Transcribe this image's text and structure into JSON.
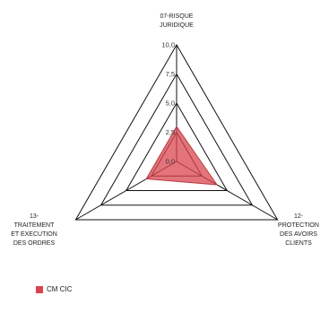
{
  "chart_data": {
    "type": "radar",
    "categories": [
      [
        "07-RISQUE",
        "JURIDIQUE"
      ],
      [
        "12-",
        "PROTECTION",
        "DES AVOIRS",
        "CLIENTS"
      ],
      [
        "13-",
        "TRAITEMENT",
        "ET EXECUTION",
        "DES ORDRES"
      ]
    ],
    "ticks": [
      "0,0",
      "2,5",
      "5,0",
      "7,5",
      "10,0"
    ],
    "tick_values": [
      0,
      2.5,
      5,
      7.5,
      10
    ],
    "range": [
      0,
      10
    ],
    "series": [
      {
        "name": "CM CIC",
        "values": [
          3.0,
          4.0,
          3.0
        ],
        "color": "#d9454f"
      }
    ],
    "grid": true,
    "legend": "bottom-left"
  }
}
